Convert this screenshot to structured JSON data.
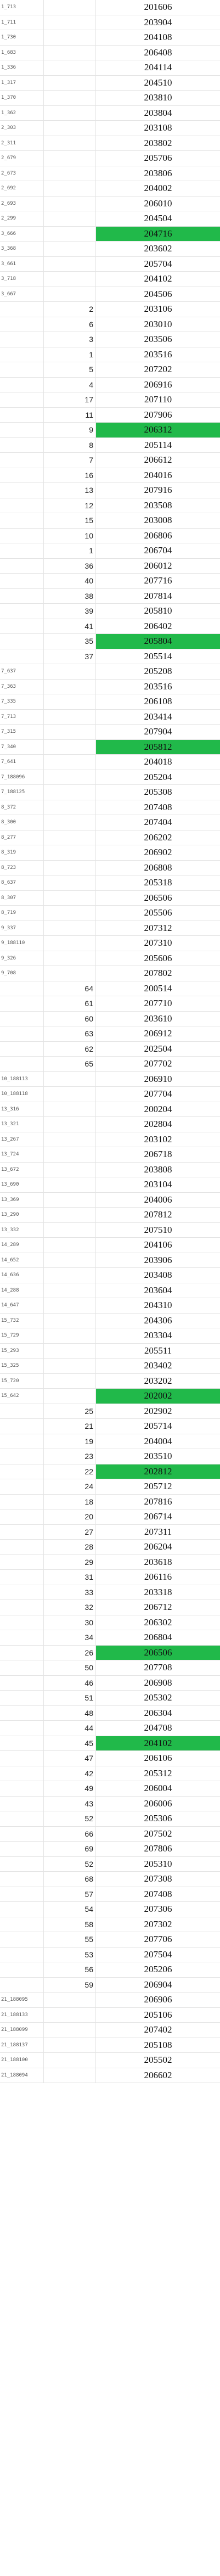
{
  "sheet": {
    "highlight_color": "#21b94a",
    "rows": [
      {
        "a": "1_713",
        "b": "",
        "c": "201606",
        "hl": false
      },
      {
        "a": "1_711",
        "b": "",
        "c": "203904",
        "hl": false
      },
      {
        "a": "1_730",
        "b": "",
        "c": "204108",
        "hl": false
      },
      {
        "a": "1_683",
        "b": "",
        "c": "206408",
        "hl": false
      },
      {
        "a": "1_336",
        "b": "",
        "c": "204114",
        "hl": false
      },
      {
        "a": "1_317",
        "b": "",
        "c": "204510",
        "hl": false
      },
      {
        "a": "1_370",
        "b": "",
        "c": "203810",
        "hl": false
      },
      {
        "a": "1_362",
        "b": "",
        "c": "203804",
        "hl": false
      },
      {
        "a": "2_303",
        "b": "",
        "c": "203108",
        "hl": false
      },
      {
        "a": "2_311",
        "b": "",
        "c": "203802",
        "hl": false
      },
      {
        "a": "2_679",
        "b": "",
        "c": "205706",
        "hl": false
      },
      {
        "a": "2_673",
        "b": "",
        "c": "203806",
        "hl": false
      },
      {
        "a": "2_692",
        "b": "",
        "c": "204002",
        "hl": false
      },
      {
        "a": "2_693",
        "b": "",
        "c": "206010",
        "hl": false
      },
      {
        "a": "2_299",
        "b": "",
        "c": "204504",
        "hl": false
      },
      {
        "a": "3_666",
        "b": "",
        "c": "204716",
        "hl": true
      },
      {
        "a": "3_368",
        "b": "",
        "c": "203602",
        "hl": false
      },
      {
        "a": "3_661",
        "b": "",
        "c": "205704",
        "hl": false
      },
      {
        "a": "3_718",
        "b": "",
        "c": "204102",
        "hl": false
      },
      {
        "a": "3_667",
        "b": "",
        "c": "204506",
        "hl": false
      },
      {
        "a": "",
        "b": "2",
        "c": "203106",
        "hl": false
      },
      {
        "a": "",
        "b": "6",
        "c": "203010",
        "hl": false
      },
      {
        "a": "",
        "b": "3",
        "c": "203506",
        "hl": false
      },
      {
        "a": "",
        "b": "1",
        "c": "203516",
        "hl": false
      },
      {
        "a": "",
        "b": "5",
        "c": "207202",
        "hl": false
      },
      {
        "a": "",
        "b": "4",
        "c": "206916",
        "hl": false
      },
      {
        "a": "",
        "b": "17",
        "c": "207110",
        "hl": false
      },
      {
        "a": "",
        "b": "11",
        "c": "207906",
        "hl": false
      },
      {
        "a": "",
        "b": "9",
        "c": "206312",
        "hl": true
      },
      {
        "a": "",
        "b": "8",
        "c": "205114",
        "hl": false
      },
      {
        "a": "",
        "b": "7",
        "c": "206612",
        "hl": false
      },
      {
        "a": "",
        "b": "16",
        "c": "204016",
        "hl": false
      },
      {
        "a": "",
        "b": "13",
        "c": "207916",
        "hl": false
      },
      {
        "a": "",
        "b": "12",
        "c": "203508",
        "hl": false
      },
      {
        "a": "",
        "b": "15",
        "c": "203008",
        "hl": false
      },
      {
        "a": "",
        "b": "10",
        "c": "206806",
        "hl": false
      },
      {
        "a": "",
        "b": "1",
        "c": "206704",
        "hl": false
      },
      {
        "a": "",
        "b": "36",
        "c": "206012",
        "hl": false
      },
      {
        "a": "",
        "b": "40",
        "c": "207716",
        "hl": false
      },
      {
        "a": "",
        "b": "38",
        "c": "207814",
        "hl": false
      },
      {
        "a": "",
        "b": "39",
        "c": "205810",
        "hl": false
      },
      {
        "a": "",
        "b": "41",
        "c": "206402",
        "hl": false
      },
      {
        "a": "",
        "b": "35",
        "c": "205804",
        "hl": true
      },
      {
        "a": "",
        "b": "37",
        "c": "205514",
        "hl": false
      },
      {
        "a": "7_637",
        "b": "",
        "c": "205208",
        "hl": false
      },
      {
        "a": "7_363",
        "b": "",
        "c": "203516",
        "hl": false
      },
      {
        "a": "7_335",
        "b": "",
        "c": "206108",
        "hl": false
      },
      {
        "a": "7_713",
        "b": "",
        "c": "203414",
        "hl": false
      },
      {
        "a": "7_315",
        "b": "",
        "c": "207904",
        "hl": false
      },
      {
        "a": "7_340",
        "b": "",
        "c": "205812",
        "hl": true
      },
      {
        "a": "7_641",
        "b": "",
        "c": "204018",
        "hl": false
      },
      {
        "a": "7_188096",
        "b": "",
        "c": "205204",
        "hl": false
      },
      {
        "a": "7_188125",
        "b": "",
        "c": "205308",
        "hl": false
      },
      {
        "a": "8_372",
        "b": "",
        "c": "207408",
        "hl": false
      },
      {
        "a": "8_300",
        "b": "",
        "c": "207404",
        "hl": false
      },
      {
        "a": "8_277",
        "b": "",
        "c": "206202",
        "hl": false
      },
      {
        "a": "8_319",
        "b": "",
        "c": "206902",
        "hl": false
      },
      {
        "a": "8_723",
        "b": "",
        "c": "206808",
        "hl": false
      },
      {
        "a": "8_637",
        "b": "",
        "c": "205318",
        "hl": false
      },
      {
        "a": "8_307",
        "b": "",
        "c": "206506",
        "hl": false
      },
      {
        "a": "8_719",
        "b": "",
        "c": "205506",
        "hl": false
      },
      {
        "a": "9_337",
        "b": "",
        "c": "207312",
        "hl": false
      },
      {
        "a": "9_188110",
        "b": "",
        "c": "207310",
        "hl": false
      },
      {
        "a": "9_326",
        "b": "",
        "c": "205606",
        "hl": false
      },
      {
        "a": "9_708",
        "b": "",
        "c": "207802",
        "hl": false
      },
      {
        "a": "",
        "b": "64",
        "c": "200514",
        "hl": false
      },
      {
        "a": "",
        "b": "61",
        "c": "207710",
        "hl": false
      },
      {
        "a": "",
        "b": "60",
        "c": "203610",
        "hl": false
      },
      {
        "a": "",
        "b": "63",
        "c": "206912",
        "hl": false
      },
      {
        "a": "",
        "b": "62",
        "c": "202504",
        "hl": false
      },
      {
        "a": "",
        "b": "65",
        "c": "207702",
        "hl": false
      },
      {
        "a": "10_188113",
        "b": "",
        "c": "206910",
        "hl": false
      },
      {
        "a": "10_188118",
        "b": "",
        "c": "207704",
        "hl": false
      },
      {
        "a": "13_316",
        "b": "",
        "c": "200204",
        "hl": false
      },
      {
        "a": "13_321",
        "b": "",
        "c": "202804",
        "hl": false
      },
      {
        "a": "13_267",
        "b": "",
        "c": "203102",
        "hl": false
      },
      {
        "a": "13_724",
        "b": "",
        "c": "206718",
        "hl": false
      },
      {
        "a": "13_672",
        "b": "",
        "c": "203808",
        "hl": false
      },
      {
        "a": "13_690",
        "b": "",
        "c": "203104",
        "hl": false
      },
      {
        "a": "13_369",
        "b": "",
        "c": "204006",
        "hl": false
      },
      {
        "a": "13_290",
        "b": "",
        "c": "207812",
        "hl": false
      },
      {
        "a": "13_332",
        "b": "",
        "c": "207510",
        "hl": false
      },
      {
        "a": "14_289",
        "b": "",
        "c": "204106",
        "hl": false
      },
      {
        "a": "14_652",
        "b": "",
        "c": "203906",
        "hl": false
      },
      {
        "a": "14_636",
        "b": "",
        "c": "203408",
        "hl": false
      },
      {
        "a": "14_288",
        "b": "",
        "c": "203604",
        "hl": false
      },
      {
        "a": "14_647",
        "b": "",
        "c": "204310",
        "hl": false
      },
      {
        "a": "15_732",
        "b": "",
        "c": "204306",
        "hl": false
      },
      {
        "a": "15_729",
        "b": "",
        "c": "203304",
        "hl": false
      },
      {
        "a": "15_293",
        "b": "",
        "c": "205511",
        "hl": false
      },
      {
        "a": "15_325",
        "b": "",
        "c": "203402",
        "hl": false
      },
      {
        "a": "15_720",
        "b": "",
        "c": "203202",
        "hl": false
      },
      {
        "a": "15_642",
        "b": "",
        "c": "202002",
        "hl": true
      },
      {
        "a": "",
        "b": "25",
        "c": "202902",
        "hl": false
      },
      {
        "a": "",
        "b": "21",
        "c": "205714",
        "hl": false
      },
      {
        "a": "",
        "b": "19",
        "c": "204004",
        "hl": false
      },
      {
        "a": "",
        "b": "23",
        "c": "203510",
        "hl": false
      },
      {
        "a": "",
        "b": "22",
        "c": "202812",
        "hl": true
      },
      {
        "a": "",
        "b": "24",
        "c": "205712",
        "hl": false
      },
      {
        "a": "",
        "b": "18",
        "c": "207816",
        "hl": false
      },
      {
        "a": "",
        "b": "20",
        "c": "206714",
        "hl": false
      },
      {
        "a": "",
        "b": "27",
        "c": "207311",
        "hl": false
      },
      {
        "a": "",
        "b": "28",
        "c": "206204",
        "hl": false
      },
      {
        "a": "",
        "b": "29",
        "c": "203618",
        "hl": false
      },
      {
        "a": "",
        "b": "31",
        "c": "206116",
        "hl": false
      },
      {
        "a": "",
        "b": "33",
        "c": "203318",
        "hl": false
      },
      {
        "a": "",
        "b": "32",
        "c": "206712",
        "hl": false
      },
      {
        "a": "",
        "b": "30",
        "c": "206302",
        "hl": false
      },
      {
        "a": "",
        "b": "34",
        "c": "206804",
        "hl": false
      },
      {
        "a": "",
        "b": "26",
        "c": "206506",
        "hl": true
      },
      {
        "a": "",
        "b": "50",
        "c": "207708",
        "hl": false
      },
      {
        "a": "",
        "b": "46",
        "c": "206908",
        "hl": false
      },
      {
        "a": "",
        "b": "51",
        "c": "205302",
        "hl": false
      },
      {
        "a": "",
        "b": "48",
        "c": "206304",
        "hl": false
      },
      {
        "a": "",
        "b": "44",
        "c": "204708",
        "hl": false
      },
      {
        "a": "",
        "b": "45",
        "c": "204102",
        "hl": true
      },
      {
        "a": "",
        "b": "47",
        "c": "206106",
        "hl": false
      },
      {
        "a": "",
        "b": "42",
        "c": "205312",
        "hl": false
      },
      {
        "a": "",
        "b": "49",
        "c": "206004",
        "hl": false
      },
      {
        "a": "",
        "b": "43",
        "c": "206006",
        "hl": false
      },
      {
        "a": "",
        "b": "52",
        "c": "205306",
        "hl": false
      },
      {
        "a": "",
        "b": "66",
        "c": "207502",
        "hl": false
      },
      {
        "a": "",
        "b": "69",
        "c": "207806",
        "hl": false
      },
      {
        "a": "",
        "b": "52",
        "c": "205310",
        "hl": false
      },
      {
        "a": "",
        "b": "68",
        "c": "207308",
        "hl": false
      },
      {
        "a": "",
        "b": "57",
        "c": "207408",
        "hl": false
      },
      {
        "a": "",
        "b": "54",
        "c": "207306",
        "hl": false
      },
      {
        "a": "",
        "b": "58",
        "c": "207302",
        "hl": false
      },
      {
        "a": "",
        "b": "55",
        "c": "207706",
        "hl": false
      },
      {
        "a": "",
        "b": "53",
        "c": "207504",
        "hl": false
      },
      {
        "a": "",
        "b": "56",
        "c": "205206",
        "hl": false
      },
      {
        "a": "",
        "b": "59",
        "c": "206904",
        "hl": false
      },
      {
        "a": "21_188095",
        "b": "",
        "c": "206906",
        "hl": false
      },
      {
        "a": "21_188133",
        "b": "",
        "c": "205106",
        "hl": false
      },
      {
        "a": "21_188099",
        "b": "",
        "c": "207402",
        "hl": false
      },
      {
        "a": "21_188137",
        "b": "",
        "c": "205108",
        "hl": false
      },
      {
        "a": "21_188100",
        "b": "",
        "c": "205502",
        "hl": false
      },
      {
        "a": "21_188094",
        "b": "",
        "c": "206602",
        "hl": false
      }
    ]
  }
}
